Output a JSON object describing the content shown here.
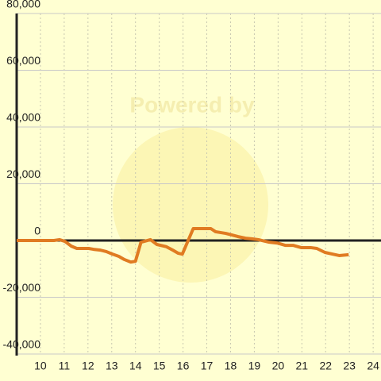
{
  "chart_data": {
    "type": "line",
    "watermark": "Powered by",
    "x": [
      9.0,
      10.57,
      10.8,
      11.03,
      11.3,
      11.53,
      12.03,
      12.23,
      12.53,
      12.77,
      13.03,
      13.3,
      13.53,
      13.8,
      14.0,
      14.23,
      14.63,
      14.9,
      15.3,
      15.57,
      15.8,
      15.97,
      16.43,
      17.17,
      17.37,
      17.8,
      18.03,
      18.3,
      18.63,
      18.9,
      19.17,
      19.63,
      19.97,
      20.3,
      20.63,
      20.97,
      21.37,
      21.63,
      21.97,
      22.3,
      22.57,
      22.97
    ],
    "series": [
      {
        "color": "#e07b22",
        "values": [
          0,
          0,
          300,
          -300,
          -2000,
          -2800,
          -2800,
          -3100,
          -3400,
          -3900,
          -4800,
          -5600,
          -6700,
          -7600,
          -7300,
          -600,
          300,
          -1400,
          -2200,
          -3400,
          -4500,
          -4800,
          4200,
          4200,
          3100,
          2500,
          2000,
          1400,
          800,
          600,
          300,
          -600,
          -900,
          -1700,
          -1700,
          -2500,
          -2500,
          -2800,
          -4200,
          -4800,
          -5300,
          -5000
        ]
      }
    ],
    "xlim": [
      9,
      24.33
    ],
    "xticks": [
      10,
      11,
      12,
      13,
      14,
      15,
      16,
      17,
      18,
      19,
      20,
      21,
      22,
      23,
      24
    ],
    "ylim": [
      -40000,
      80000
    ],
    "yticks": [
      {
        "value": -40000,
        "label": "-40,000"
      },
      {
        "value": -20000,
        "label": "-20,000"
      },
      0,
      {
        "value": 20000,
        "label": "20,000"
      },
      {
        "value": 40000,
        "label": "40,000"
      },
      {
        "value": 60000,
        "label": "60,000"
      },
      {
        "value": 80000,
        "label": "80,000"
      }
    ],
    "grid": true
  }
}
